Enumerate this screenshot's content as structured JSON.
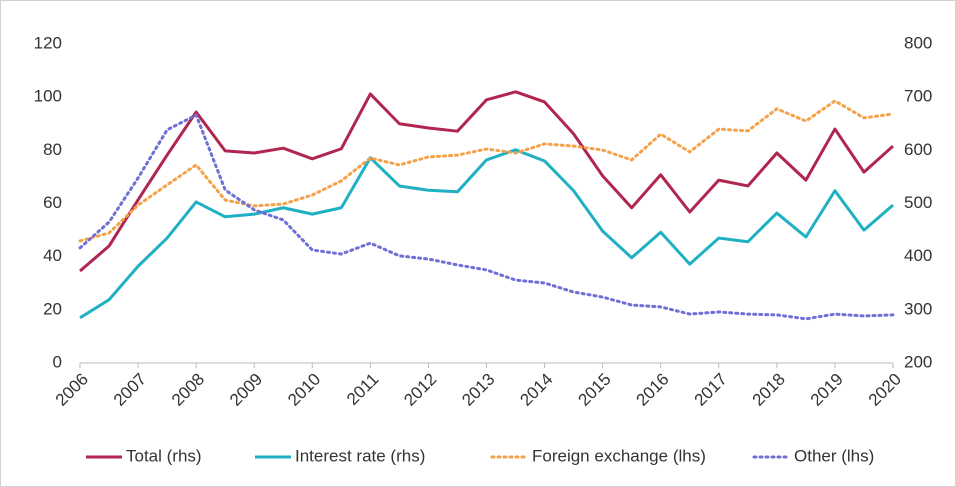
{
  "chart_data": {
    "type": "line",
    "x": [
      2006,
      2006.5,
      2007,
      2007.5,
      2008,
      2008.5,
      2009,
      2009.5,
      2010,
      2010.5,
      2011,
      2011.5,
      2012,
      2012.5,
      2013,
      2013.5,
      2014,
      2014.5,
      2015,
      2015.5,
      2016,
      2016.5,
      2017,
      2017.5,
      2018,
      2018.5,
      2019,
      2019.5,
      2020
    ],
    "xlim": [
      2006,
      2020
    ],
    "xticks": [
      2006,
      2007,
      2008,
      2009,
      2010,
      2011,
      2012,
      2013,
      2014,
      2015,
      2016,
      2017,
      2018,
      2019,
      2020
    ],
    "ylim": [
      0,
      120
    ],
    "yticks": [
      0,
      20,
      40,
      60,
      80,
      100,
      120
    ],
    "y2lim": [
      200,
      800
    ],
    "y2ticks": [
      200,
      300,
      400,
      500,
      600,
      700,
      800
    ],
    "legend": "bottom",
    "grid": false,
    "series": [
      {
        "name": "Total (rhs)",
        "color": "#b0264f",
        "style": "solid",
        "axis": "y2",
        "values": [
          373,
          420,
          507,
          591,
          672,
          599,
          595,
          604,
          584,
          603,
          706,
          650,
          642,
          636,
          695,
          710,
          691,
          631,
          552,
          492,
          554,
          484,
          544,
          533,
          595,
          544,
          640,
          559,
          608
        ]
      },
      {
        "name": "Interest rate (rhs)",
        "color": "#1fb0c4",
        "style": "solid",
        "axis": "y2",
        "values": [
          285,
          319,
          382,
          435,
          503,
          475,
          480,
          492,
          480,
          492,
          586,
          533,
          525,
          522,
          582,
          601,
          580,
          524,
          448,
          398,
          446,
          386,
          435,
          428,
          482,
          437,
          524,
          450,
          497
        ]
      },
      {
        "name": "Foreign exchange (lhs)",
        "color": "#f5a14a",
        "style": "dotted",
        "axis": "y",
        "values": [
          45.9,
          48.9,
          59.4,
          67,
          74.5,
          61.3,
          59.1,
          59.8,
          63.2,
          68.5,
          77.1,
          74.5,
          77.5,
          78.2,
          80.5,
          79,
          82.4,
          81.6,
          80.1,
          76.4,
          86.1,
          79.4,
          88,
          87.3,
          95.6,
          91,
          98.6,
          92.2,
          93.7
        ]
      },
      {
        "name": "Other (lhs)",
        "color": "#6f6fd6",
        "style": "dotted",
        "axis": "y",
        "values": [
          43.3,
          53,
          69.6,
          87.7,
          93.3,
          65.1,
          57.6,
          53.8,
          42.5,
          41,
          45.1,
          40.3,
          39.1,
          36.9,
          35,
          31.2,
          30.1,
          26.7,
          24.8,
          21.8,
          21.1,
          18.4,
          19.2,
          18.4,
          18.1,
          16.6,
          18.4,
          17.7,
          18.1
        ]
      }
    ]
  }
}
